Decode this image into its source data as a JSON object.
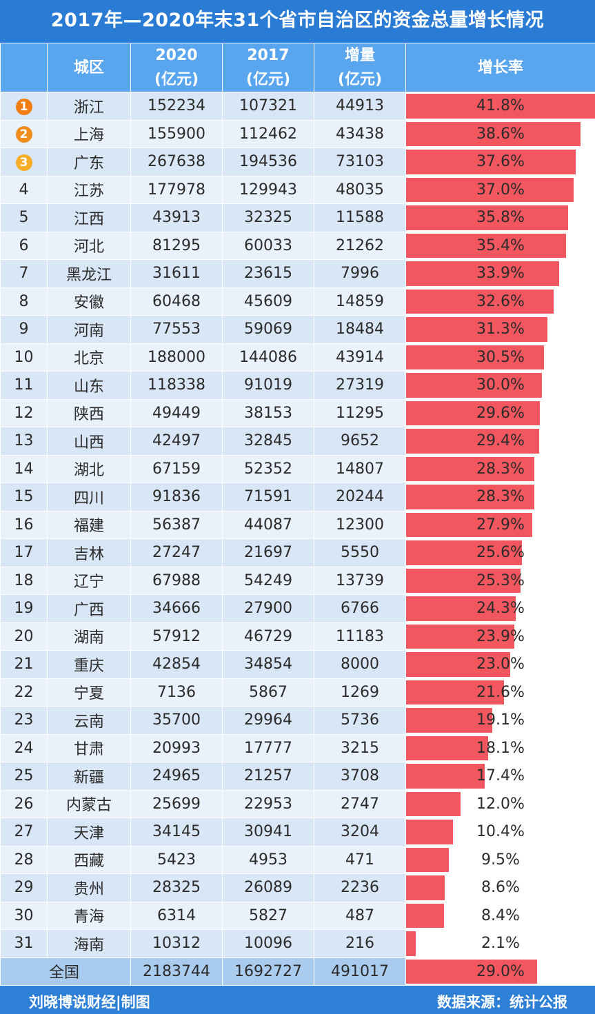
{
  "title": "2017年—2020年末31个省市自治区的资金总量增长情况",
  "columns": {
    "city": "城区",
    "v2020": "2020",
    "v2017": "2017",
    "increase": "增量",
    "unit": "(亿元)",
    "rate": "增长率"
  },
  "footer": {
    "left": "刘晓博说财经|制图",
    "right": "数据来源：统计公报"
  },
  "colors": {
    "header": "#5aa6ee",
    "bar": "#f2575f",
    "title_bg": "#2a7bd4"
  },
  "chart_data": {
    "type": "table",
    "rate_max": 41.8,
    "rows": [
      {
        "rank": "1",
        "medal": true,
        "city": "浙江",
        "v2020": "152234",
        "v2017": "107321",
        "increase": "44913",
        "rate": 41.8,
        "rate_label": "41.8%"
      },
      {
        "rank": "2",
        "medal": true,
        "city": "上海",
        "v2020": "155900",
        "v2017": "112462",
        "increase": "43438",
        "rate": 38.6,
        "rate_label": "38.6%"
      },
      {
        "rank": "3",
        "medal": true,
        "city": "广东",
        "v2020": "267638",
        "v2017": "194536",
        "increase": "73103",
        "rate": 37.6,
        "rate_label": "37.6%"
      },
      {
        "rank": "4",
        "city": "江苏",
        "v2020": "177978",
        "v2017": "129943",
        "increase": "48035",
        "rate": 37.0,
        "rate_label": "37.0%"
      },
      {
        "rank": "5",
        "city": "江西",
        "v2020": "43913",
        "v2017": "32325",
        "increase": "11588",
        "rate": 35.8,
        "rate_label": "35.8%"
      },
      {
        "rank": "6",
        "city": "河北",
        "v2020": "81295",
        "v2017": "60033",
        "increase": "21262",
        "rate": 35.4,
        "rate_label": "35.4%"
      },
      {
        "rank": "7",
        "city": "黑龙江",
        "v2020": "31611",
        "v2017": "23615",
        "increase": "7996",
        "rate": 33.9,
        "rate_label": "33.9%"
      },
      {
        "rank": "8",
        "city": "安徽",
        "v2020": "60468",
        "v2017": "45609",
        "increase": "14859",
        "rate": 32.6,
        "rate_label": "32.6%"
      },
      {
        "rank": "9",
        "city": "河南",
        "v2020": "77553",
        "v2017": "59069",
        "increase": "18484",
        "rate": 31.3,
        "rate_label": "31.3%"
      },
      {
        "rank": "10",
        "city": "北京",
        "v2020": "188000",
        "v2017": "144086",
        "increase": "43914",
        "rate": 30.5,
        "rate_label": "30.5%"
      },
      {
        "rank": "11",
        "city": "山东",
        "v2020": "118338",
        "v2017": "91019",
        "increase": "27319",
        "rate": 30.0,
        "rate_label": "30.0%"
      },
      {
        "rank": "12",
        "city": "陕西",
        "v2020": "49449",
        "v2017": "38153",
        "increase": "11295",
        "rate": 29.6,
        "rate_label": "29.6%"
      },
      {
        "rank": "13",
        "city": "山西",
        "v2020": "42497",
        "v2017": "32845",
        "increase": "9652",
        "rate": 29.4,
        "rate_label": "29.4%"
      },
      {
        "rank": "14",
        "city": "湖北",
        "v2020": "67159",
        "v2017": "52352",
        "increase": "14807",
        "rate": 28.3,
        "rate_label": "28.3%"
      },
      {
        "rank": "15",
        "city": "四川",
        "v2020": "91836",
        "v2017": "71591",
        "increase": "20244",
        "rate": 28.3,
        "rate_label": "28.3%"
      },
      {
        "rank": "16",
        "city": "福建",
        "v2020": "56387",
        "v2017": "44087",
        "increase": "12300",
        "rate": 27.9,
        "rate_label": "27.9%"
      },
      {
        "rank": "17",
        "city": "吉林",
        "v2020": "27247",
        "v2017": "21697",
        "increase": "5550",
        "rate": 25.6,
        "rate_label": "25.6%"
      },
      {
        "rank": "18",
        "city": "辽宁",
        "v2020": "67988",
        "v2017": "54249",
        "increase": "13739",
        "rate": 25.3,
        "rate_label": "25.3%"
      },
      {
        "rank": "19",
        "city": "广西",
        "v2020": "34666",
        "v2017": "27900",
        "increase": "6766",
        "rate": 24.3,
        "rate_label": "24.3%"
      },
      {
        "rank": "20",
        "city": "湖南",
        "v2020": "57912",
        "v2017": "46729",
        "increase": "11183",
        "rate": 23.9,
        "rate_label": "23.9%"
      },
      {
        "rank": "21",
        "city": "重庆",
        "v2020": "42854",
        "v2017": "34854",
        "increase": "8000",
        "rate": 23.0,
        "rate_label": "23.0%"
      },
      {
        "rank": "22",
        "city": "宁夏",
        "v2020": "7136",
        "v2017": "5867",
        "increase": "1269",
        "rate": 21.6,
        "rate_label": "21.6%"
      },
      {
        "rank": "23",
        "city": "云南",
        "v2020": "35700",
        "v2017": "29964",
        "increase": "5736",
        "rate": 19.1,
        "rate_label": "19.1%"
      },
      {
        "rank": "24",
        "city": "甘肃",
        "v2020": "20993",
        "v2017": "17777",
        "increase": "3215",
        "rate": 18.1,
        "rate_label": "18.1%"
      },
      {
        "rank": "25",
        "city": "新疆",
        "v2020": "24965",
        "v2017": "21257",
        "increase": "3708",
        "rate": 17.4,
        "rate_label": "17.4%"
      },
      {
        "rank": "26",
        "city": "内蒙古",
        "v2020": "25699",
        "v2017": "22953",
        "increase": "2747",
        "rate": 12.0,
        "rate_label": "12.0%"
      },
      {
        "rank": "27",
        "city": "天津",
        "v2020": "34145",
        "v2017": "30941",
        "increase": "3204",
        "rate": 10.4,
        "rate_label": "10.4%"
      },
      {
        "rank": "28",
        "city": "西藏",
        "v2020": "5423",
        "v2017": "4953",
        "increase": "471",
        "rate": 9.5,
        "rate_label": "9.5%"
      },
      {
        "rank": "29",
        "city": "贵州",
        "v2020": "28325",
        "v2017": "26089",
        "increase": "2236",
        "rate": 8.6,
        "rate_label": "8.6%"
      },
      {
        "rank": "30",
        "city": "青海",
        "v2020": "6314",
        "v2017": "5827",
        "increase": "487",
        "rate": 8.4,
        "rate_label": "8.4%"
      },
      {
        "rank": "31",
        "city": "海南",
        "v2020": "10312",
        "v2017": "10096",
        "increase": "216",
        "rate": 2.1,
        "rate_label": "2.1%"
      }
    ],
    "total": {
      "city": "全国",
      "v2020": "2183744",
      "v2017": "1692727",
      "increase": "491017",
      "rate": 29.0,
      "rate_label": "29.0%"
    }
  }
}
